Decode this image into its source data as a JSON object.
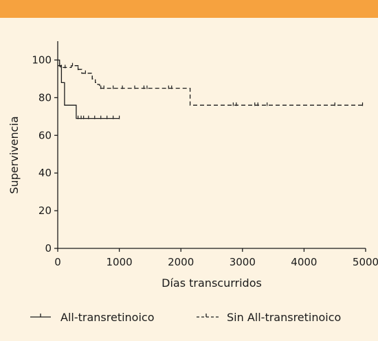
{
  "colors": {
    "top_bar": "#f6a23f",
    "background": "#fdf3e1",
    "ink": "#1a1a1a"
  },
  "chart_data": {
    "type": "line",
    "title": "",
    "xlabel": "Días transcurridos",
    "ylabel": "Supervivencia",
    "xlim": [
      0,
      5000
    ],
    "ylim": [
      0,
      110
    ],
    "x_ticks": [
      0,
      1000,
      2000,
      3000,
      4000,
      5000
    ],
    "y_ticks": [
      0,
      20,
      40,
      60,
      80,
      100
    ],
    "grid": false,
    "legend_position": "bottom",
    "series": [
      {
        "name": "All-transretinoico",
        "style": "solid",
        "steps": [
          [
            0,
            100
          ],
          [
            30,
            97
          ],
          [
            60,
            88
          ],
          [
            100,
            88
          ],
          [
            110,
            76
          ],
          [
            280,
            76
          ],
          [
            300,
            69
          ],
          [
            1000,
            69
          ]
        ],
        "censored": [
          [
            30,
            97
          ],
          [
            330,
            69
          ],
          [
            380,
            69
          ],
          [
            420,
            69
          ],
          [
            500,
            69
          ],
          [
            600,
            69
          ],
          [
            700,
            69
          ],
          [
            800,
            69
          ],
          [
            900,
            69
          ],
          [
            1000,
            69
          ]
        ]
      },
      {
        "name": "Sin All-transretinoico",
        "style": "dashed",
        "steps": [
          [
            0,
            97
          ],
          [
            40,
            96
          ],
          [
            200,
            96
          ],
          [
            220,
            97
          ],
          [
            300,
            97
          ],
          [
            330,
            95
          ],
          [
            390,
            93
          ],
          [
            540,
            93
          ],
          [
            560,
            90
          ],
          [
            610,
            88
          ],
          [
            650,
            87
          ],
          [
            680,
            85
          ],
          [
            2130,
            85
          ],
          [
            2150,
            76
          ],
          [
            4950,
            76
          ]
        ],
        "censored": [
          [
            60,
            96
          ],
          [
            120,
            96
          ],
          [
            240,
            97
          ],
          [
            330,
            95
          ],
          [
            450,
            93
          ],
          [
            560,
            90
          ],
          [
            700,
            85
          ],
          [
            750,
            85
          ],
          [
            900,
            85
          ],
          [
            1050,
            85
          ],
          [
            1250,
            85
          ],
          [
            1400,
            85
          ],
          [
            1450,
            85
          ],
          [
            1800,
            85
          ],
          [
            1850,
            85
          ],
          [
            2850,
            76
          ],
          [
            2900,
            76
          ],
          [
            3200,
            76
          ],
          [
            3250,
            76
          ],
          [
            3400,
            76
          ],
          [
            4500,
            76
          ],
          [
            4950,
            76
          ]
        ]
      }
    ]
  }
}
